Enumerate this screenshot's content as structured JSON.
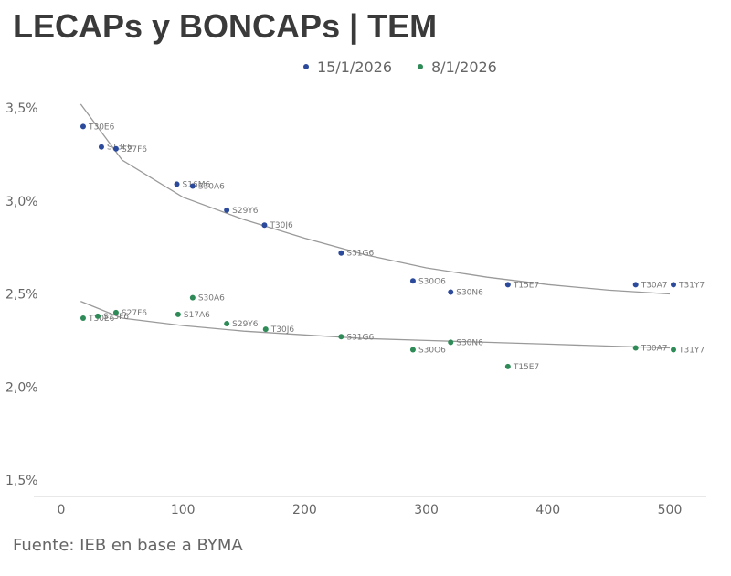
{
  "header": {
    "title": "LECAPs y BONCAPs | TEM"
  },
  "footer": {
    "source": "Fuente: IEB en base a BYMA"
  },
  "chart_data": {
    "type": "scatter",
    "title": "LECAPs y BONCAPs | TEM",
    "xlabel": "",
    "ylabel": "",
    "xlim": [
      0,
      500
    ],
    "ylim": [
      1.5,
      3.5
    ],
    "x_ticks": [
      "0",
      "100",
      "200",
      "300",
      "400",
      "500"
    ],
    "y_ticks": [
      "1,5%",
      "2,0%",
      "2,5%",
      "3,0%",
      "3,5%"
    ],
    "grid": false,
    "legend_position": "top",
    "series": [
      {
        "name": "15/1/2026",
        "color": "#2b4a9b",
        "points": [
          {
            "label": "T30E6",
            "x": 18,
            "y": 3.4
          },
          {
            "label": "S13F6",
            "x": 33,
            "y": 3.29
          },
          {
            "label": "S27F6",
            "x": 45,
            "y": 3.28
          },
          {
            "label": "S16M6",
            "x": 95,
            "y": 3.09
          },
          {
            "label": "S30A6",
            "x": 108,
            "y": 3.08
          },
          {
            "label": "S29Y6",
            "x": 136,
            "y": 2.95
          },
          {
            "label": "T30J6",
            "x": 167,
            "y": 2.87
          },
          {
            "label": "S31G6",
            "x": 230,
            "y": 2.72
          },
          {
            "label": "S30O6",
            "x": 289,
            "y": 2.57
          },
          {
            "label": "S30N6",
            "x": 320,
            "y": 2.51
          },
          {
            "label": "T15E7",
            "x": 367,
            "y": 2.55
          },
          {
            "label": "T30A7",
            "x": 472,
            "y": 2.55
          },
          {
            "label": "T31Y7",
            "x": 503,
            "y": 2.55
          }
        ],
        "trend": [
          {
            "x": 16,
            "y": 3.52
          },
          {
            "x": 50,
            "y": 3.22
          },
          {
            "x": 100,
            "y": 3.02
          },
          {
            "x": 150,
            "y": 2.9
          },
          {
            "x": 200,
            "y": 2.8
          },
          {
            "x": 250,
            "y": 2.71
          },
          {
            "x": 300,
            "y": 2.64
          },
          {
            "x": 350,
            "y": 2.59
          },
          {
            "x": 400,
            "y": 2.55
          },
          {
            "x": 450,
            "y": 2.52
          },
          {
            "x": 500,
            "y": 2.5
          }
        ]
      },
      {
        "name": "8/1/2026",
        "color": "#2e8b57",
        "points": [
          {
            "label": "T30E6",
            "x": 18,
            "y": 2.37
          },
          {
            "label": "S13F6",
            "x": 30,
            "y": 2.38
          },
          {
            "label": "S27F6",
            "x": 45,
            "y": 2.4
          },
          {
            "label": "S17A6",
            "x": 96,
            "y": 2.39
          },
          {
            "label": "S30A6",
            "x": 108,
            "y": 2.48
          },
          {
            "label": "S29Y6",
            "x": 136,
            "y": 2.34
          },
          {
            "label": "T30J6",
            "x": 168,
            "y": 2.31
          },
          {
            "label": "S31G6",
            "x": 230,
            "y": 2.27
          },
          {
            "label": "S30O6",
            "x": 289,
            "y": 2.2
          },
          {
            "label": "S30N6",
            "x": 320,
            "y": 2.24
          },
          {
            "label": "T15E7",
            "x": 367,
            "y": 2.11
          },
          {
            "label": "T30A7",
            "x": 472,
            "y": 2.21
          },
          {
            "label": "T31Y7",
            "x": 503,
            "y": 2.2
          }
        ],
        "trend": [
          {
            "x": 16,
            "y": 2.46
          },
          {
            "x": 50,
            "y": 2.37
          },
          {
            "x": 100,
            "y": 2.33
          },
          {
            "x": 150,
            "y": 2.3
          },
          {
            "x": 200,
            "y": 2.28
          },
          {
            "x": 250,
            "y": 2.26
          },
          {
            "x": 300,
            "y": 2.25
          },
          {
            "x": 350,
            "y": 2.24
          },
          {
            "x": 400,
            "y": 2.23
          },
          {
            "x": 450,
            "y": 2.22
          },
          {
            "x": 500,
            "y": 2.21
          }
        ]
      }
    ]
  }
}
